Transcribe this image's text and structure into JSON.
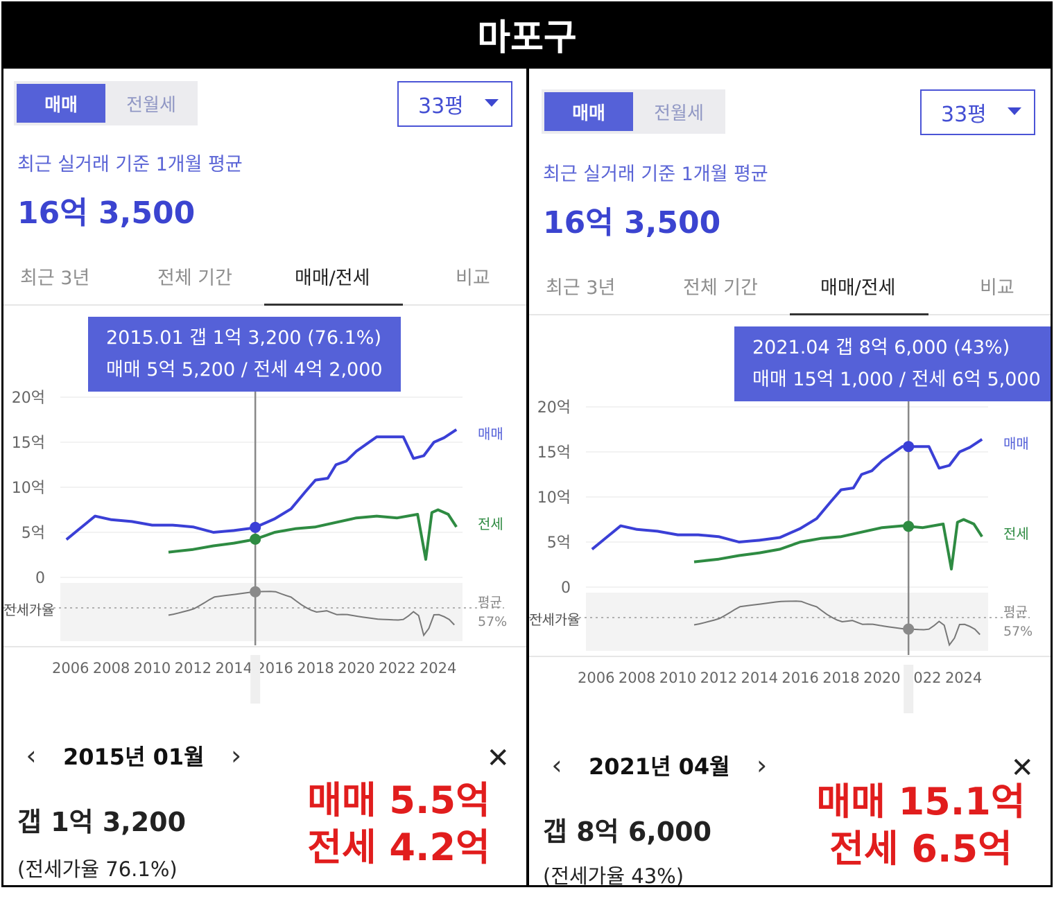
{
  "title": "마포구",
  "colors": {
    "accent": "#5561d8",
    "sale_line": "#3a3fd6",
    "jeonse_line": "#2e8b42",
    "ratio_line": "#777777",
    "annotation": "#e11d1d"
  },
  "panels": [
    {
      "segments": [
        "매매",
        "전월세"
      ],
      "active_segment": "매매",
      "size_select": "33평",
      "caption": "최근 실거래 기준 1개월 평균",
      "price": "16억 3,500",
      "tabs": [
        "최근 3년",
        "전체 기간",
        "매매/전세",
        "비교"
      ],
      "active_tab": "매매/전세",
      "tooltip": {
        "line1": "2015.01  갭 1억 3,200 (76.1%)",
        "line2": "매매 5억 5,200 / 전세 4억 2,000"
      },
      "chart": {
        "y_ticks": [
          "20억",
          "15억",
          "10억",
          "5억",
          "0"
        ],
        "ratio_label": "전세가율",
        "series_labels": {
          "sale": "매매",
          "jeonse": "전세",
          "avg": "평균",
          "avg_value": "57%"
        },
        "x_ticks": [
          "2006",
          "2008",
          "2010",
          "2012",
          "2014",
          "2016",
          "2018",
          "2020",
          "2022",
          "2024"
        ],
        "selected_year": 2015.05
      },
      "detail": {
        "month": "2015년 01월",
        "gap": "갭 1억 3,200",
        "ratio": "(전세가율 76.1%)",
        "annotation_line1": "매매 5.5억",
        "annotation_line2": "전세 4.2억"
      }
    },
    {
      "segments": [
        "매매",
        "전월세"
      ],
      "active_segment": "매매",
      "size_select": "33평",
      "caption": "최근 실거래 기준 1개월 평균",
      "price": "16억 3,500",
      "tabs": [
        "최근 3년",
        "전체 기간",
        "매매/전세",
        "비교"
      ],
      "active_tab": "매매/전세",
      "tooltip": {
        "line1": "2021.04  갭 8억 6,000 (43%)",
        "line2": "매매 15억 1,000 / 전세 6억 5,000"
      },
      "chart": {
        "y_ticks": [
          "20억",
          "15억",
          "10억",
          "5억",
          "0"
        ],
        "ratio_label": "전세가율",
        "series_labels": {
          "sale": "매매",
          "jeonse": "전세",
          "avg": "평균",
          "avg_value": "57%"
        },
        "x_ticks": [
          "2006",
          "2008",
          "2010",
          "2012",
          "2014",
          "2016",
          "2018",
          "2020",
          "2022",
          "2024"
        ],
        "selected_year": 2021.3
      },
      "detail": {
        "month": "2021년 04월",
        "gap": "갭 8억 6,000",
        "ratio": "(전세가율 43%)",
        "annotation_line1": "매매 15.1억",
        "annotation_line2": "전세 6.5억"
      }
    }
  ],
  "chart_data": [
    {
      "type": "line",
      "title": "",
      "xlabel": "",
      "ylabel": "",
      "ylim": [
        0,
        20
      ],
      "y_unit": "억",
      "series": [
        {
          "name": "매매",
          "x": [
            2005.8,
            2006.5,
            2007.2,
            2008,
            2009,
            2010,
            2011,
            2012,
            2013,
            2014,
            2015,
            2016,
            2016.8,
            2017.5,
            2018,
            2018.6,
            2019,
            2019.5,
            2020,
            2021,
            2021.8,
            2022.3,
            2022.8,
            2023.3,
            2023.8,
            2024.3,
            2024.9
          ],
          "y": [
            4.2,
            5.5,
            6.8,
            6.4,
            6.2,
            5.8,
            5.8,
            5.6,
            5.0,
            5.2,
            5.5,
            6.5,
            7.6,
            9.5,
            10.8,
            11.0,
            12.5,
            12.9,
            14.0,
            15.6,
            15.6,
            15.6,
            13.2,
            13.5,
            15.0,
            15.5,
            16.4
          ]
        },
        {
          "name": "전세",
          "x": [
            2010.8,
            2012,
            2013,
            2014,
            2015,
            2016,
            2017,
            2018,
            2019,
            2020,
            2021,
            2022,
            2023,
            2023.4,
            2023.7,
            2024,
            2024.5,
            2024.9
          ],
          "y": [
            2.8,
            3.1,
            3.5,
            3.8,
            4.2,
            5.0,
            5.4,
            5.6,
            6.1,
            6.6,
            6.8,
            6.6,
            7.0,
            2.0,
            7.2,
            7.5,
            7.0,
            5.6
          ]
        }
      ]
    },
    {
      "type": "line",
      "title": "",
      "xlabel": "",
      "ylabel": "",
      "ylim": [
        0,
        20
      ],
      "y_unit": "억",
      "series": [
        {
          "name": "매매",
          "x": [
            2005.8,
            2006.5,
            2007.2,
            2008,
            2009,
            2010,
            2011,
            2012,
            2013,
            2014,
            2015,
            2016,
            2016.8,
            2017.5,
            2018,
            2018.6,
            2019,
            2019.5,
            2020,
            2021,
            2021.8,
            2022.3,
            2022.8,
            2023.3,
            2023.8,
            2024.3,
            2024.9
          ],
          "y": [
            4.2,
            5.5,
            6.8,
            6.4,
            6.2,
            5.8,
            5.8,
            5.6,
            5.0,
            5.2,
            5.5,
            6.5,
            7.6,
            9.5,
            10.8,
            11.0,
            12.5,
            12.9,
            14.0,
            15.6,
            15.6,
            15.6,
            13.2,
            13.5,
            15.0,
            15.5,
            16.4
          ]
        },
        {
          "name": "전세",
          "x": [
            2010.8,
            2012,
            2013,
            2014,
            2015,
            2016,
            2017,
            2018,
            2019,
            2020,
            2021,
            2022,
            2023,
            2023.4,
            2023.7,
            2024,
            2024.5,
            2024.9
          ],
          "y": [
            2.8,
            3.1,
            3.5,
            3.8,
            4.2,
            5.0,
            5.4,
            5.6,
            6.1,
            6.6,
            6.8,
            6.6,
            7.0,
            2.0,
            7.2,
            7.5,
            7.0,
            5.6
          ]
        }
      ]
    }
  ]
}
